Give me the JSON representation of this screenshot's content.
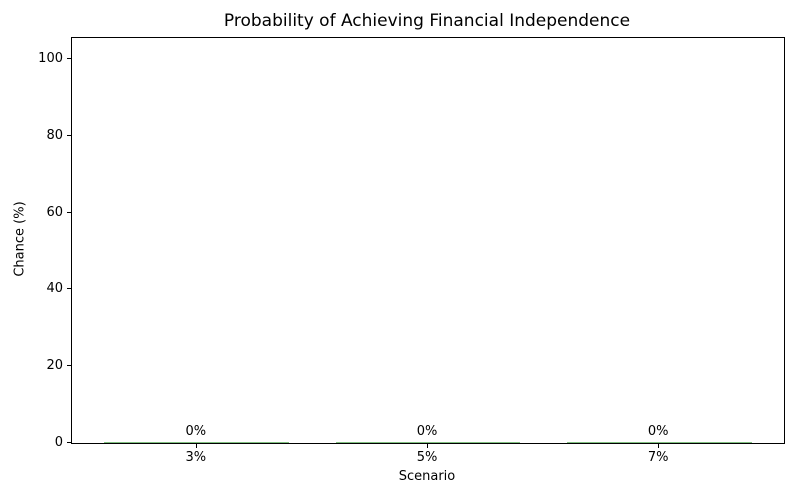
{
  "chart_data": {
    "type": "bar",
    "title": "Probability of Achieving Financial Independence",
    "xlabel": "Scenario",
    "ylabel": "Chance (%)",
    "categories": [
      "3%",
      "5%",
      "7%"
    ],
    "values": [
      0,
      0,
      0
    ],
    "bar_labels": [
      "0%",
      "0%",
      "0%"
    ],
    "yticks": [
      0,
      20,
      40,
      60,
      80,
      100
    ],
    "ylim": [
      0,
      105.5
    ],
    "grid": false,
    "legend": "none",
    "colors": {
      "bar": "#80c080",
      "axis": "#000000",
      "text": "#000000",
      "background": "#ffffff"
    }
  }
}
